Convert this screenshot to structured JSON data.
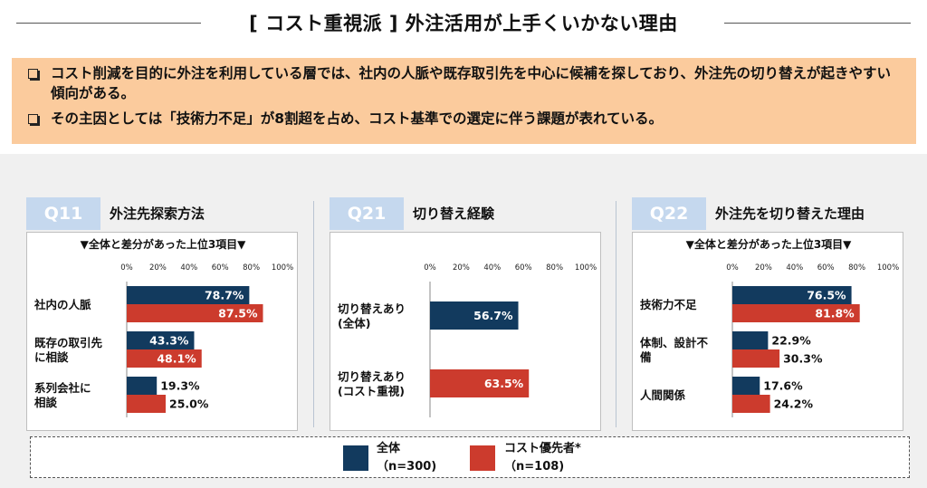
{
  "header": {
    "title": "[ コスト重視派 ] 外注活用が上手くいかない理由"
  },
  "summary": {
    "bullets": [
      "コスト削減を目的に外注を利用している層では、社内の人脈や既存取引先を中心に候補を探しており、外注先の切り替えが起きやすい傾向がある。",
      "その主因としては「技術力不足」が8割超を占め、コスト基準での選定に伴う課題が表れている。"
    ]
  },
  "colors": {
    "all": "#123a5e",
    "cost": "#cc3b2d",
    "badge": "#c5d8ee",
    "summary_bg": "#fbcb9d"
  },
  "axis_ticks": [
    "0%",
    "20%",
    "40%",
    "60%",
    "80%",
    "100%"
  ],
  "panels": [
    {
      "badge": "Q11",
      "title": "外注先探索方法",
      "subtitle": "▼全体と差分があった上位3項目▼"
    },
    {
      "badge": "Q21",
      "title": "切り替え経験",
      "subtitle": ""
    },
    {
      "badge": "Q22",
      "title": "外注先を切り替えた理由",
      "subtitle": "▼全体と差分があった上位3項目▼"
    }
  ],
  "legend": {
    "items": [
      {
        "label": "全体",
        "n": "（n=300)"
      },
      {
        "label": "コスト優先者*",
        "n": "（n=108)"
      }
    ]
  },
  "chart_data": [
    {
      "type": "bar",
      "orientation": "horizontal",
      "title": "外注先探索方法",
      "categories": [
        "社内の人脈",
        "既存の取引先\nに相談",
        "系列会社に\n相談"
      ],
      "series": [
        {
          "name": "全体",
          "values": [
            78.7,
            43.3,
            19.3
          ]
        },
        {
          "name": "コスト優先者*",
          "values": [
            87.5,
            48.1,
            25.0
          ]
        }
      ],
      "xlim": [
        0,
        100
      ]
    },
    {
      "type": "bar",
      "orientation": "horizontal",
      "title": "切り替え経験",
      "categories": [
        "切り替えあり\n(全体)",
        "切り替えあり\n(コスト重視)"
      ],
      "series": [
        {
          "name": "全体",
          "values": [
            56.7,
            null
          ]
        },
        {
          "name": "コスト優先者*",
          "values": [
            null,
            63.5
          ]
        }
      ],
      "xlim": [
        0,
        100
      ]
    },
    {
      "type": "bar",
      "orientation": "horizontal",
      "title": "外注先を切り替えた理由",
      "categories": [
        "技術力不足",
        "体制、設計不\n備",
        "人間関係"
      ],
      "series": [
        {
          "name": "全体",
          "values": [
            76.5,
            22.9,
            17.6
          ]
        },
        {
          "name": "コスト優先者*",
          "values": [
            81.8,
            30.3,
            24.2
          ]
        }
      ],
      "xlim": [
        0,
        100
      ]
    }
  ]
}
